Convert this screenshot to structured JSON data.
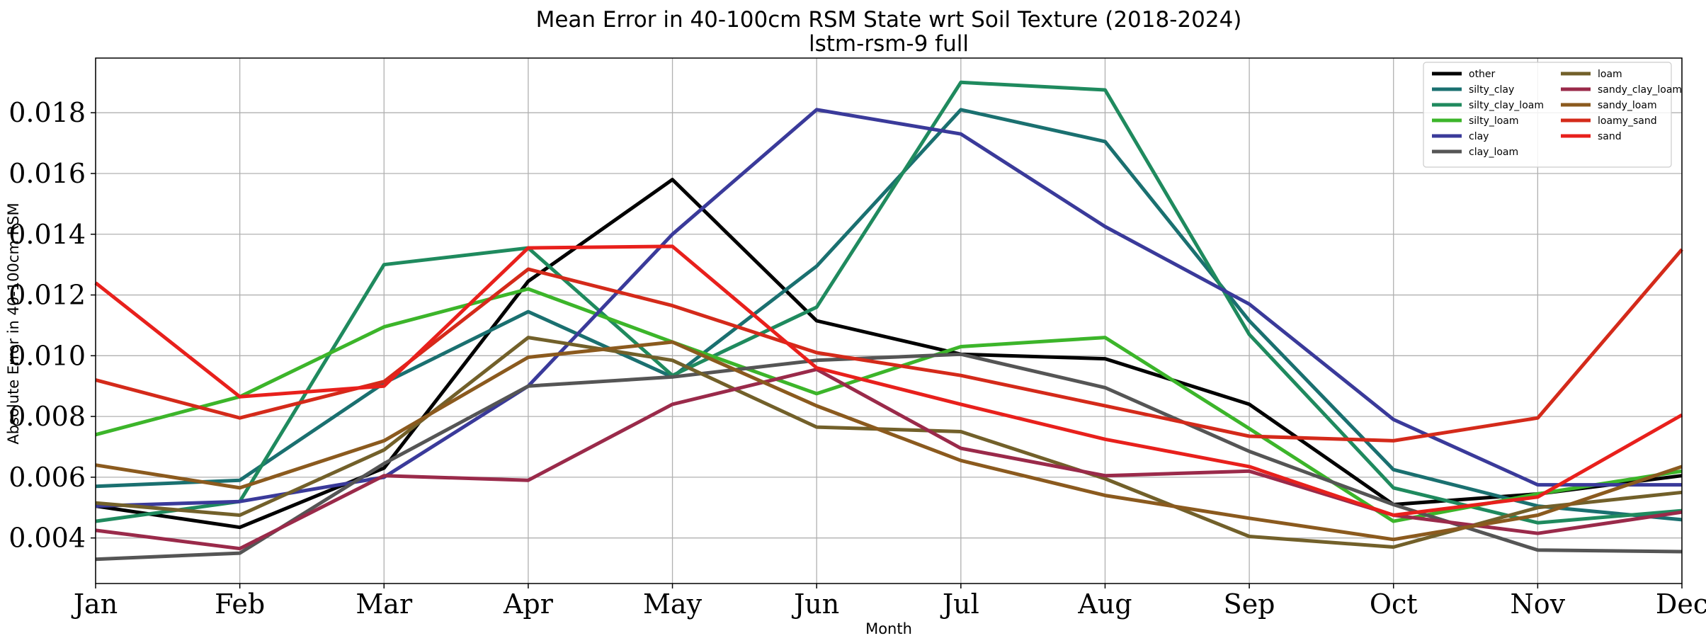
{
  "chart_data": {
    "type": "line",
    "title": "Mean Error in 40-100cm RSM State wrt Soil Texture (2018-2024)",
    "subtitle": "lstm-rsm-9 full",
    "xlabel": "Month",
    "ylabel": "Absolute Error in 40-100cm RSM",
    "x": [
      "Jan",
      "Feb",
      "Mar",
      "Apr",
      "May",
      "Jun",
      "Jul",
      "Aug",
      "Sep",
      "Oct",
      "Nov",
      "Dec"
    ],
    "ylim": [
      0.0025,
      0.0198
    ],
    "yticks": [
      0.004,
      0.006,
      0.008,
      0.01,
      0.012,
      0.014,
      0.016,
      0.018
    ],
    "ytick_labels": [
      "0.004",
      "0.006",
      "0.008",
      "0.010",
      "0.012",
      "0.014",
      "0.016",
      "0.018"
    ],
    "grid": true,
    "legend_position": "top-right",
    "legend_columns": 2,
    "series": [
      {
        "name": "other",
        "color": "#000000",
        "values": [
          0.00505,
          0.00435,
          0.0063,
          0.01245,
          0.0158,
          0.01115,
          0.01005,
          0.0099,
          0.0084,
          0.0051,
          0.00545,
          0.00605
        ]
      },
      {
        "name": "silty_clay",
        "color": "#1a7070",
        "values": [
          0.0057,
          0.0059,
          0.0091,
          0.01145,
          0.0093,
          0.01295,
          0.0181,
          0.01705,
          0.01115,
          0.00625,
          0.00505,
          0.0046
        ]
      },
      {
        "name": "silty_clay_loam",
        "color": "#1f8a5e",
        "values": [
          0.00455,
          0.0052,
          0.013,
          0.01355,
          0.00935,
          0.0116,
          0.019,
          0.01875,
          0.0107,
          0.00565,
          0.0045,
          0.0049
        ]
      },
      {
        "name": "silty_loam",
        "color": "#3cb52a",
        "values": [
          0.0074,
          0.00865,
          0.01095,
          0.0122,
          0.01045,
          0.00875,
          0.0103,
          0.0106,
          0.0076,
          0.00455,
          0.00545,
          0.0062
        ]
      },
      {
        "name": "clay",
        "color": "#3a3a9a",
        "values": [
          0.00505,
          0.0052,
          0.006,
          0.009,
          0.014,
          0.0181,
          0.0173,
          0.01425,
          0.0117,
          0.0079,
          0.00575,
          0.00575
        ]
      },
      {
        "name": "clay_loam",
        "color": "#555555",
        "values": [
          0.0033,
          0.0035,
          0.00645,
          0.009,
          0.0093,
          0.00985,
          0.01005,
          0.00895,
          0.00685,
          0.0051,
          0.0036,
          0.00355
        ]
      },
      {
        "name": "loam",
        "color": "#72602a",
        "values": [
          0.00515,
          0.00475,
          0.0069,
          0.0106,
          0.00985,
          0.00765,
          0.0075,
          0.00595,
          0.00405,
          0.0037,
          0.005,
          0.0055
        ]
      },
      {
        "name": "sandy_clay_loam",
        "color": "#9a2a4a",
        "values": [
          0.00425,
          0.00365,
          0.00605,
          0.0059,
          0.0084,
          0.00955,
          0.00695,
          0.00605,
          0.0062,
          0.00475,
          0.00415,
          0.00485
        ]
      },
      {
        "name": "sandy_loam",
        "color": "#8b5a1e",
        "values": [
          0.0064,
          0.00565,
          0.0072,
          0.00995,
          0.01045,
          0.00835,
          0.00655,
          0.0054,
          0.00465,
          0.00395,
          0.00475,
          0.00635
        ]
      },
      {
        "name": "loamy_sand",
        "color": "#d42a1a",
        "values": [
          0.0092,
          0.00795,
          0.00915,
          0.01285,
          0.01165,
          0.0101,
          0.00935,
          0.00835,
          0.00735,
          0.0072,
          0.00795,
          0.0135
        ]
      },
      {
        "name": "sand",
        "color": "#e8201c",
        "values": [
          0.0124,
          0.00865,
          0.009,
          0.01355,
          0.0136,
          0.0096,
          0.0084,
          0.00725,
          0.00635,
          0.00475,
          0.00535,
          0.00805
        ]
      }
    ]
  }
}
